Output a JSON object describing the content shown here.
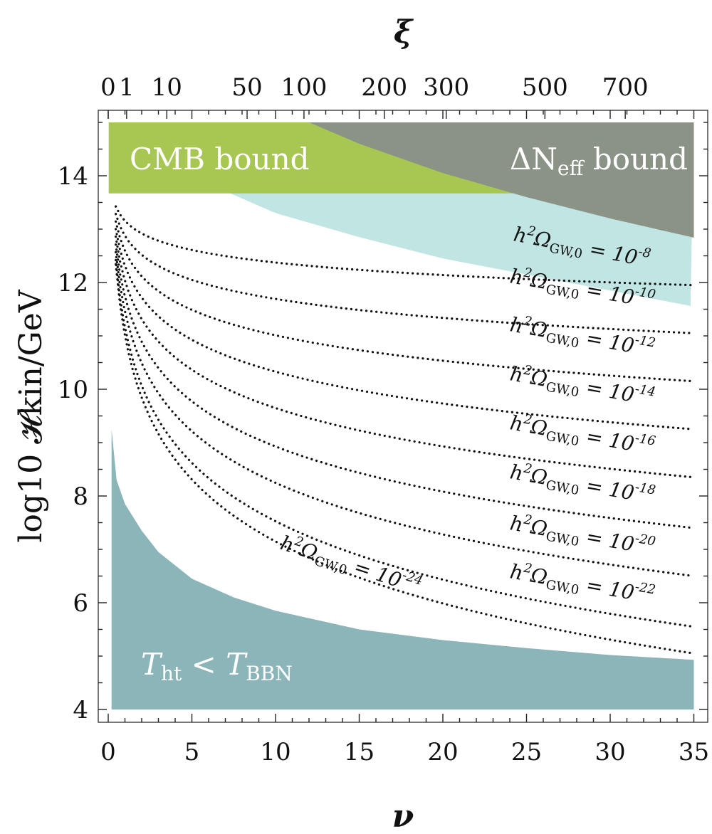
{
  "chart_data": {
    "type": "contour",
    "title": "",
    "xlabel": "ν",
    "ylabel": "log10 𝓗kin/GeV",
    "top_xlabel": "ξ",
    "xlim": [
      -1,
      35.8
    ],
    "ylim": [
      3.8,
      15.2
    ],
    "x_ticks": [
      "0",
      "5",
      "10",
      "15",
      "20",
      "25",
      "30",
      "35"
    ],
    "y_ticks": [
      "4",
      "6",
      "8",
      "10",
      "12",
      "14"
    ],
    "top_ticks": [
      {
        "label": "0",
        "nu": 0.0
      },
      {
        "label": "1",
        "nu": 1.1
      },
      {
        "label": "10",
        "nu": 3.5
      },
      {
        "label": "50",
        "nu": 8.3
      },
      {
        "label": "100",
        "nu": 11.7
      },
      {
        "label": "200",
        "nu": 16.5
      },
      {
        "label": "300",
        "nu": 20.2
      },
      {
        "label": "500",
        "nu": 26.1
      },
      {
        "label": "700",
        "nu": 30.9
      }
    ],
    "regions": [
      {
        "name": "CMB bound",
        "label": "CMB bound",
        "color": "#a8c752",
        "ymin": 13.67,
        "ymax": 15.0,
        "xrange": [
          0.2,
          35
        ]
      },
      {
        "name": "ΔNeff bound",
        "label_main": "ΔN",
        "label_sub": "eff",
        "label_rest": " bound",
        "color": "#8b9387",
        "lower_boundary_nu": [
          12.0,
          15,
          20,
          25,
          30,
          35
        ],
        "lower_boundary_y": [
          15.0,
          14.6,
          14.05,
          13.6,
          13.2,
          12.84
        ]
      },
      {
        "name": "GW excluded",
        "color": "#c0e5e3",
        "lower_boundary_nu": [
          7.3,
          10,
          15,
          20,
          25,
          30,
          35
        ],
        "lower_boundary_y": [
          13.67,
          13.3,
          12.85,
          12.45,
          12.15,
          11.85,
          11.55
        ]
      },
      {
        "name": "Tht < TBBN",
        "label_T1": "T",
        "label_sub1": "ht",
        "label_mid": " < ",
        "label_T2": "T",
        "label_sub2": "BBN",
        "color": "#8bb5b8",
        "upper_boundary_nu": [
          0.2,
          0.5,
          1,
          2,
          3,
          5,
          7.5,
          10,
          15,
          20,
          25,
          30,
          35
        ],
        "upper_boundary_y": [
          9.25,
          8.3,
          7.85,
          7.35,
          6.95,
          6.45,
          6.1,
          5.85,
          5.5,
          5.3,
          5.15,
          5.02,
          4.93
        ]
      }
    ],
    "contours": [
      {
        "exp": "-8",
        "lhs": "h",
        "sup2": "2",
        "omega": "Ω",
        "sub": "GW,0",
        "eq": " = 10",
        "nu_end_y": 13.2,
        "end_y": 11.95
      },
      {
        "exp": "-10",
        "lhs": "h",
        "sup2": "2",
        "omega": "Ω",
        "sub": "GW,0",
        "eq": " = 10",
        "nu_end_y": 12.0,
        "end_y": 11.05
      },
      {
        "exp": "-12",
        "lhs": "h",
        "sup2": "2",
        "omega": "Ω",
        "sub": "GW,0",
        "eq": " = 10",
        "nu_end_y": 11.0,
        "end_y": 10.15
      },
      {
        "exp": "-14",
        "lhs": "h",
        "sup2": "2",
        "omega": "Ω",
        "sub": "GW,0",
        "eq": " = 10",
        "nu_end_y": 10.0,
        "end_y": 9.25
      },
      {
        "exp": "-16",
        "lhs": "h",
        "sup2": "2",
        "omega": "Ω",
        "sub": "GW,0",
        "eq": " = 10",
        "nu_end_y": 9.1,
        "end_y": 8.35
      },
      {
        "exp": "-18",
        "lhs": "h",
        "sup2": "2",
        "omega": "Ω",
        "sub": "GW,0",
        "eq": " = 10",
        "nu_end_y": 8.2,
        "end_y": 7.4
      },
      {
        "exp": "-20",
        "lhs": "h",
        "sup2": "2",
        "omega": "Ω",
        "sub": "GW,0",
        "eq": " = 10",
        "nu_end_y": 7.3,
        "end_y": 6.5
      },
      {
        "exp": "-22",
        "lhs": "h",
        "sup2": "2",
        "omega": "Ω",
        "sub": "GW,0",
        "eq": " = 10",
        "nu_end_y": 6.4,
        "end_y": 5.55
      },
      {
        "exp": "-24",
        "lhs": "h",
        "sup2": "2",
        "omega": "Ω",
        "sub": "GW,0",
        "eq": " = 10",
        "nu_end_y": 5.6,
        "end_y": 5.05
      }
    ],
    "colors": {
      "frame": "#555555",
      "dots": "#111111"
    }
  }
}
